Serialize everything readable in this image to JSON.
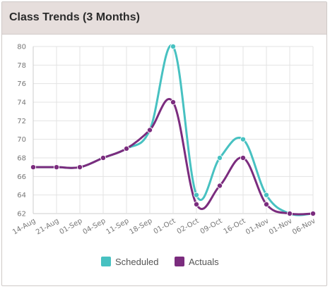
{
  "card": {
    "title": "Class Trends (3 Months)"
  },
  "colors": {
    "scheduled": "#47c1c1",
    "actuals": "#7b2c7e",
    "grid": "#e3e3e3",
    "axis": "#cccccc"
  },
  "chart_data": {
    "type": "line",
    "title": "Class Trends (3 Months)",
    "xlabel": "",
    "ylabel": "",
    "categories": [
      "14-Aug",
      "21-Aug",
      "01-Sep",
      "04-Sep",
      "11-Sep",
      "18-Sep",
      "01-Oct",
      "02-Oct",
      "09-Oct",
      "16-Oct",
      "01-Nov",
      "01-Nov",
      "06-Nov"
    ],
    "ylim": [
      62,
      80
    ],
    "yticks": [
      62,
      64,
      66,
      68,
      70,
      72,
      74,
      76,
      78,
      80
    ],
    "grid": true,
    "legend_position": "bottom",
    "series": [
      {
        "name": "Scheduled",
        "values": [
          67,
          67,
          67,
          68,
          69,
          71,
          80,
          64,
          68,
          70,
          64,
          62,
          62
        ]
      },
      {
        "name": "Actuals",
        "values": [
          67,
          67,
          67,
          68,
          69,
          71,
          74,
          63,
          65,
          68,
          63,
          62,
          62
        ]
      }
    ]
  }
}
